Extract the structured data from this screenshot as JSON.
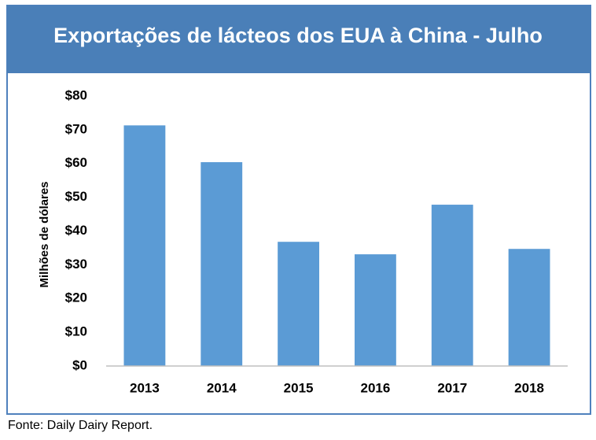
{
  "chart_data": {
    "type": "bar",
    "title": "Exportações de lácteos dos EUA à China - Julho",
    "y_label": "Milhões de dólares",
    "source": "Fonte: Daily Dairy Report.",
    "categories": [
      "2013",
      "2014",
      "2015",
      "2016",
      "2017",
      "2018"
    ],
    "values": [
      71.3,
      60.4,
      36.8,
      33.1,
      47.8,
      34.7
    ],
    "color": "#5b9bd5",
    "ylim": [
      0,
      80
    ],
    "yticks": [
      {
        "value": 0,
        "label": "$0"
      },
      {
        "value": 10,
        "label": "$10"
      },
      {
        "value": 20,
        "label": "$20"
      },
      {
        "value": 30,
        "label": "$30"
      },
      {
        "value": 40,
        "label": "$40"
      },
      {
        "value": 50,
        "label": "$50"
      },
      {
        "value": 60,
        "label": "$60"
      },
      {
        "value": 70,
        "label": "$70"
      },
      {
        "value": 80,
        "label": "$80"
      }
    ],
    "grid": false
  }
}
